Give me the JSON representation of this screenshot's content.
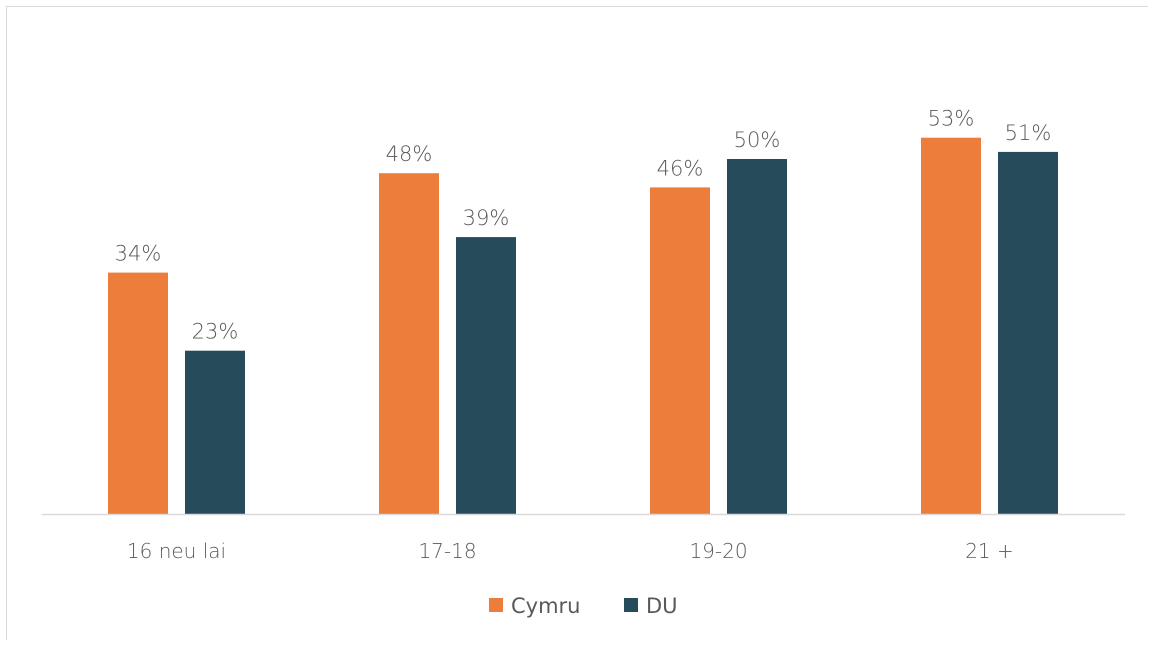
{
  "chart_data": {
    "type": "bar",
    "title": "",
    "xlabel": "",
    "ylabel": "",
    "categories": [
      "16 neu lai",
      "17-18",
      "19-20",
      "21 +"
    ],
    "series": [
      {
        "name": "Cymru",
        "values": [
          34,
          48,
          46,
          53
        ],
        "labels": [
          "34%",
          "48%",
          "46%",
          "53%"
        ],
        "color": "#ED7D3A"
      },
      {
        "name": "DU",
        "values": [
          23,
          39,
          50,
          51
        ],
        "labels": [
          "23%",
          "39%",
          "50%",
          "51%"
        ],
        "color": "#264B5A"
      }
    ],
    "ylim": [
      0,
      60
    ],
    "grid": false,
    "legend_position": "bottom",
    "axis_color": "#d9d9d9"
  }
}
